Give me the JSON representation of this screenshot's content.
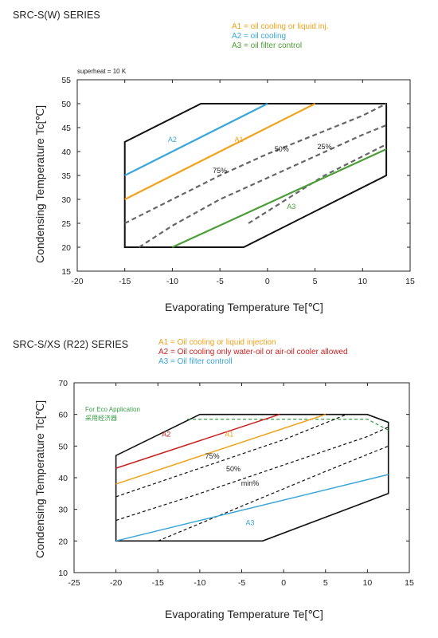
{
  "chart_data": [
    {
      "type": "line",
      "title": "SRC-S(W) SERIES",
      "legend": [
        {
          "text": "A1 = oil cooling or liquid inj.",
          "color": "#f0a21a"
        },
        {
          "text": "A2 = oil cooling",
          "color": "#3aa6d8"
        },
        {
          "text": "A3 = oil filter control",
          "color": "#4a9e35"
        }
      ],
      "note": "superheat = 10 K",
      "xlabel": "Evaporating Temperature Te[℃]",
      "ylabel": "Condensing Temperature Tc[℃]",
      "xlim": [
        -20,
        15
      ],
      "ylim": [
        15,
        55
      ],
      "xticks": [
        "-20",
        "-15",
        "-10",
        "-5",
        "0",
        "5",
        "10",
        "15"
      ],
      "yticks": [
        "15",
        "20",
        "25",
        "30",
        "35",
        "40",
        "45",
        "50",
        "55"
      ],
      "envelope": [
        [
          -15,
          20
        ],
        [
          -2.5,
          20
        ],
        [
          12.5,
          35
        ],
        [
          12.5,
          50
        ],
        [
          -7,
          50
        ],
        [
          -15,
          42
        ]
      ],
      "series": [
        {
          "name": "A2",
          "color": "#3aa6d8",
          "style": "solid",
          "points": [
            [
              -15,
              35
            ],
            [
              0,
              50
            ]
          ]
        },
        {
          "name": "A1",
          "color": "#f0a21a",
          "style": "solid",
          "points": [
            [
              -15,
              30
            ],
            [
              5,
              50
            ]
          ]
        },
        {
          "name": "75%",
          "color": "#666666",
          "style": "dashed",
          "points": [
            [
              -15,
              25
            ],
            [
              -10,
              30
            ],
            [
              -5,
              35
            ],
            [
              0,
              39.5
            ],
            [
              5,
              43.5
            ],
            [
              10,
              47.5
            ],
            [
              12.5,
              50
            ]
          ]
        },
        {
          "name": "50%",
          "color": "#666666",
          "style": "dashed",
          "points": [
            [
              -13.5,
              20
            ],
            [
              -10,
              24.5
            ],
            [
              -5,
              30
            ],
            [
              0,
              34.5
            ],
            [
              5,
              39
            ],
            [
              10,
              43.5
            ],
            [
              12.5,
              45.5
            ]
          ]
        },
        {
          "name": "25%",
          "color": "#666666",
          "style": "dashed",
          "points": [
            [
              -2,
              25
            ],
            [
              2,
              30
            ],
            [
              6,
              35
            ],
            [
              10,
              39
            ],
            [
              12.5,
              41.5
            ]
          ]
        },
        {
          "name": "A3",
          "color": "#4a9e35",
          "style": "solid",
          "points": [
            [
              -10,
              20
            ],
            [
              12.5,
              40.5
            ]
          ]
        }
      ],
      "labels": [
        {
          "text": "A2",
          "x": -10,
          "y": 42,
          "color": "#3aa6d8"
        },
        {
          "text": "A1",
          "x": -3,
          "y": 42,
          "color": "#f0a21a"
        },
        {
          "text": "75%",
          "x": -5,
          "y": 35.5,
          "color": "#222222"
        },
        {
          "text": "50%",
          "x": 1.5,
          "y": 40,
          "color": "#222222"
        },
        {
          "text": "25%",
          "x": 6,
          "y": 40.5,
          "color": "#222222"
        },
        {
          "text": "A3",
          "x": 2.5,
          "y": 28,
          "color": "#4a9e35"
        }
      ]
    },
    {
      "type": "line",
      "title": "SRC-S/XS (R22) SERIES",
      "legend": [
        {
          "text": "A1 = Oil cooling or liquid injection",
          "color": "#f0a21a"
        },
        {
          "text": "A2 = Oil cooling only water-oil or air-oil cooler allowed",
          "color": "#cc1f1f"
        },
        {
          "text": "A3 = Oil filter controll",
          "color": "#3aa6d8"
        }
      ],
      "eco_note": [
        "For Eco Application",
        "采用经济器"
      ],
      "xlabel": "Evaporating Temperature Te[℃]",
      "ylabel": "Condensing Temperature Tc[℃]",
      "xlim": [
        -25,
        15
      ],
      "ylim": [
        10,
        70
      ],
      "xticks": [
        "-25",
        "-20",
        "-15",
        "-10",
        "-5",
        "0",
        "5",
        "10",
        "15"
      ],
      "yticks": [
        "10",
        "20",
        "30",
        "40",
        "50",
        "60",
        "70"
      ],
      "envelope": [
        [
          -20,
          20
        ],
        [
          -2.5,
          20
        ],
        [
          12.5,
          35
        ],
        [
          12.5,
          57.5
        ],
        [
          10,
          60
        ],
        [
          -10,
          60
        ],
        [
          -20,
          47
        ]
      ],
      "series": [
        {
          "name": "eco",
          "color": "#3a9e48",
          "style": "dashed",
          "points": [
            [
              -11.5,
              58.5
            ],
            [
              10,
              58.5
            ],
            [
              12.5,
              55
            ]
          ]
        },
        {
          "name": "A2",
          "color": "#cc1f1f",
          "style": "solid",
          "points": [
            [
              -20,
              43
            ],
            [
              -0.5,
              60
            ]
          ]
        },
        {
          "name": "A1",
          "color": "#f0a21a",
          "style": "solid",
          "points": [
            [
              -20,
              38
            ],
            [
              5,
              60
            ]
          ]
        },
        {
          "name": "75%",
          "color": "#111111",
          "style": "dashed",
          "points": [
            [
              -20,
              34
            ],
            [
              -10,
              43
            ],
            [
              0,
              52
            ],
            [
              7.5,
              60
            ]
          ]
        },
        {
          "name": "50%",
          "color": "#111111",
          "style": "dashed",
          "points": [
            [
              -20,
              26.5
            ],
            [
              -10,
              35
            ],
            [
              0,
              44
            ],
            [
              10,
              53
            ],
            [
              12.5,
              56
            ]
          ]
        },
        {
          "name": "min%",
          "color": "#111111",
          "style": "dashed",
          "points": [
            [
              -15,
              20
            ],
            [
              -5,
              31
            ],
            [
              5,
              42
            ],
            [
              12.5,
              50
            ]
          ]
        },
        {
          "name": "A3",
          "color": "#3aa6d8",
          "style": "solid",
          "points": [
            [
              -20,
              20
            ],
            [
              12.5,
              41
            ]
          ]
        }
      ],
      "labels": [
        {
          "text": "A2",
          "x": -14,
          "y": 53,
          "color": "#cc1f1f"
        },
        {
          "text": "A1",
          "x": -6.5,
          "y": 53,
          "color": "#f0a21a"
        },
        {
          "text": "75%",
          "x": -8.5,
          "y": 46,
          "color": "#222222"
        },
        {
          "text": "50%",
          "x": -6,
          "y": 42,
          "color": "#222222"
        },
        {
          "text": "min%",
          "x": -4,
          "y": 37.5,
          "color": "#222222"
        },
        {
          "text": "A3",
          "x": -4,
          "y": 25,
          "color": "#3aa6d8"
        }
      ]
    }
  ]
}
